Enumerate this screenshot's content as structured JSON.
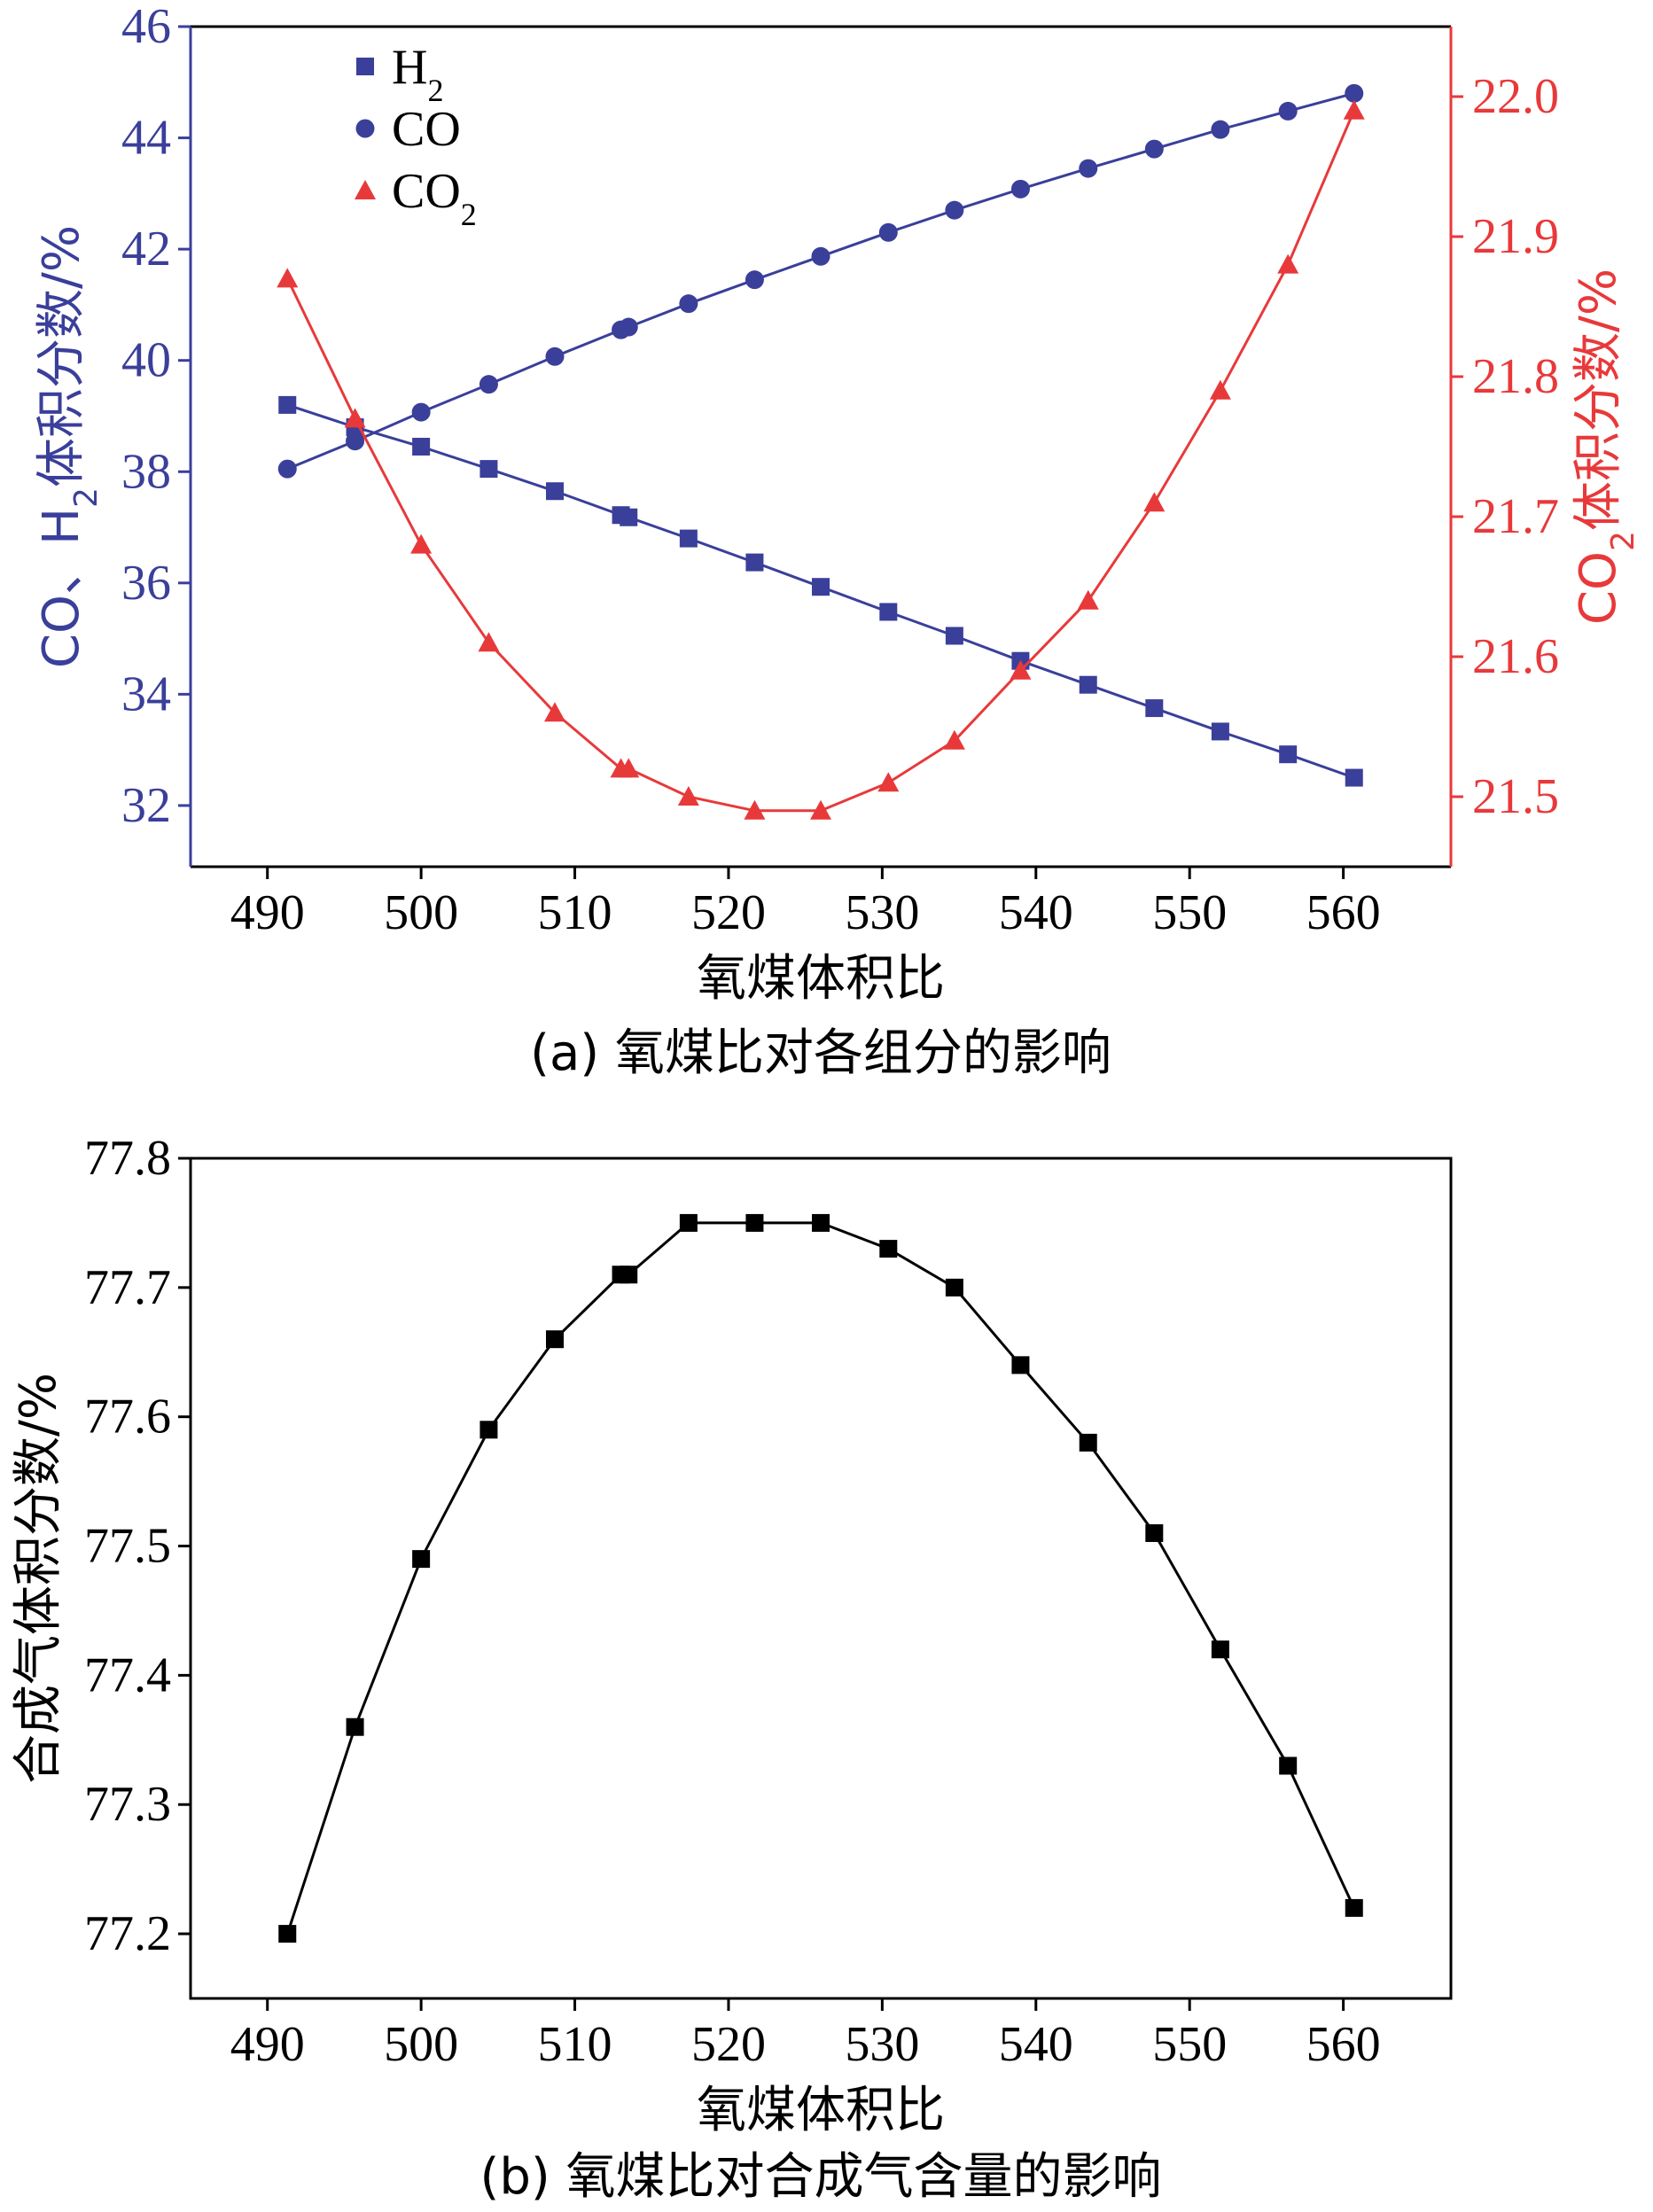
{
  "figure_a": {
    "caption": "(a) 氧煤比对各组分的影响",
    "chart_data": {
      "type": "line",
      "xlabel": "氧煤体积比",
      "ylabel_left_parts": [
        "CO、H",
        "2",
        "体积分数/%"
      ],
      "ylabel_right_parts": [
        "CO",
        "2",
        "体积分数/%"
      ],
      "xlim": [
        485,
        567
      ],
      "ylim_left": [
        30.9,
        46
      ],
      "ylim_right": [
        21.45,
        22.05
      ],
      "xticks": [
        "490",
        "500",
        "510",
        "520",
        "530",
        "540",
        "550",
        "560"
      ],
      "yticks_left": [
        "32",
        "34",
        "36",
        "38",
        "40",
        "42",
        "44",
        "46"
      ],
      "yticks_right": [
        "21.5",
        "21.6",
        "21.7",
        "21.8",
        "21.9",
        "22.0"
      ],
      "colors": {
        "H2": "#3a3f9a",
        "CO": "#3a3f9a",
        "CO2": "#e8393a"
      },
      "legend": {
        "placement": "top-left",
        "entries": [
          {
            "key": "H2",
            "parts": [
              "H",
              "2"
            ],
            "marker": "square"
          },
          {
            "key": "CO",
            "parts": [
              "CO",
              ""
            ],
            "marker": "circle"
          },
          {
            "key": "CO2",
            "parts": [
              "CO",
              "2"
            ],
            "marker": "triangle"
          }
        ]
      },
      "series": [
        {
          "key": "H2",
          "axis": "left",
          "marker": "square",
          "x": [
            491.3,
            495.7,
            500.0,
            504.4,
            508.7,
            513.0,
            513.5,
            517.4,
            521.7,
            526.0,
            530.4,
            534.7,
            539.0,
            543.4,
            547.7,
            552.0,
            556.4,
            560.7
          ],
          "y": [
            39.2,
            38.8,
            38.45,
            38.05,
            37.65,
            37.22,
            37.18,
            36.8,
            36.37,
            35.93,
            35.48,
            35.05,
            34.6,
            34.17,
            33.75,
            33.33,
            32.92,
            32.5
          ]
        },
        {
          "key": "CO",
          "axis": "left",
          "marker": "circle",
          "x": [
            491.3,
            495.7,
            500.0,
            504.4,
            508.7,
            513.0,
            513.5,
            517.4,
            521.7,
            526.0,
            530.4,
            534.7,
            539.0,
            543.4,
            547.7,
            552.0,
            556.4,
            560.7
          ],
          "y": [
            38.05,
            38.55,
            39.07,
            39.57,
            40.07,
            40.55,
            40.6,
            41.02,
            41.45,
            41.87,
            42.3,
            42.7,
            43.08,
            43.45,
            43.8,
            44.15,
            44.48,
            44.8
          ]
        },
        {
          "key": "CO2",
          "axis": "right",
          "marker": "triangle",
          "x": [
            491.3,
            495.7,
            500.0,
            504.4,
            508.7,
            513.0,
            513.5,
            517.4,
            521.7,
            526.0,
            530.4,
            534.7,
            539.0,
            543.4,
            547.7,
            552.0,
            556.4,
            560.7
          ],
          "y": [
            21.87,
            21.77,
            21.68,
            21.61,
            21.56,
            21.52,
            21.52,
            21.5,
            21.49,
            21.49,
            21.51,
            21.54,
            21.59,
            21.64,
            21.71,
            21.79,
            21.88,
            21.99
          ]
        }
      ]
    }
  },
  "figure_b": {
    "caption": "(b) 氧煤比对合成气含量的影响",
    "chart_data": {
      "type": "line",
      "xlabel": "氧煤体积比",
      "ylabel": "合成气体积分数/%",
      "xlim": [
        485,
        567
      ],
      "ylim": [
        77.15,
        77.8
      ],
      "xticks": [
        "490",
        "500",
        "510",
        "520",
        "530",
        "540",
        "550",
        "560"
      ],
      "yticks": [
        "77.2",
        "77.3",
        "77.4",
        "77.5",
        "77.6",
        "77.7",
        "77.8"
      ],
      "colors": {
        "line": "#000000",
        "marker": "#000000"
      },
      "series": [
        {
          "key": "syngas",
          "marker": "square",
          "x": [
            491.3,
            495.7,
            500.0,
            504.4,
            508.7,
            513.0,
            513.5,
            517.4,
            521.7,
            526.0,
            530.4,
            534.7,
            539.0,
            543.4,
            547.7,
            552.0,
            556.4,
            560.7
          ],
          "y": [
            77.2,
            77.36,
            77.49,
            77.59,
            77.66,
            77.71,
            77.71,
            77.75,
            77.75,
            77.75,
            77.73,
            77.7,
            77.64,
            77.58,
            77.51,
            77.42,
            77.33,
            77.22
          ]
        }
      ]
    }
  }
}
